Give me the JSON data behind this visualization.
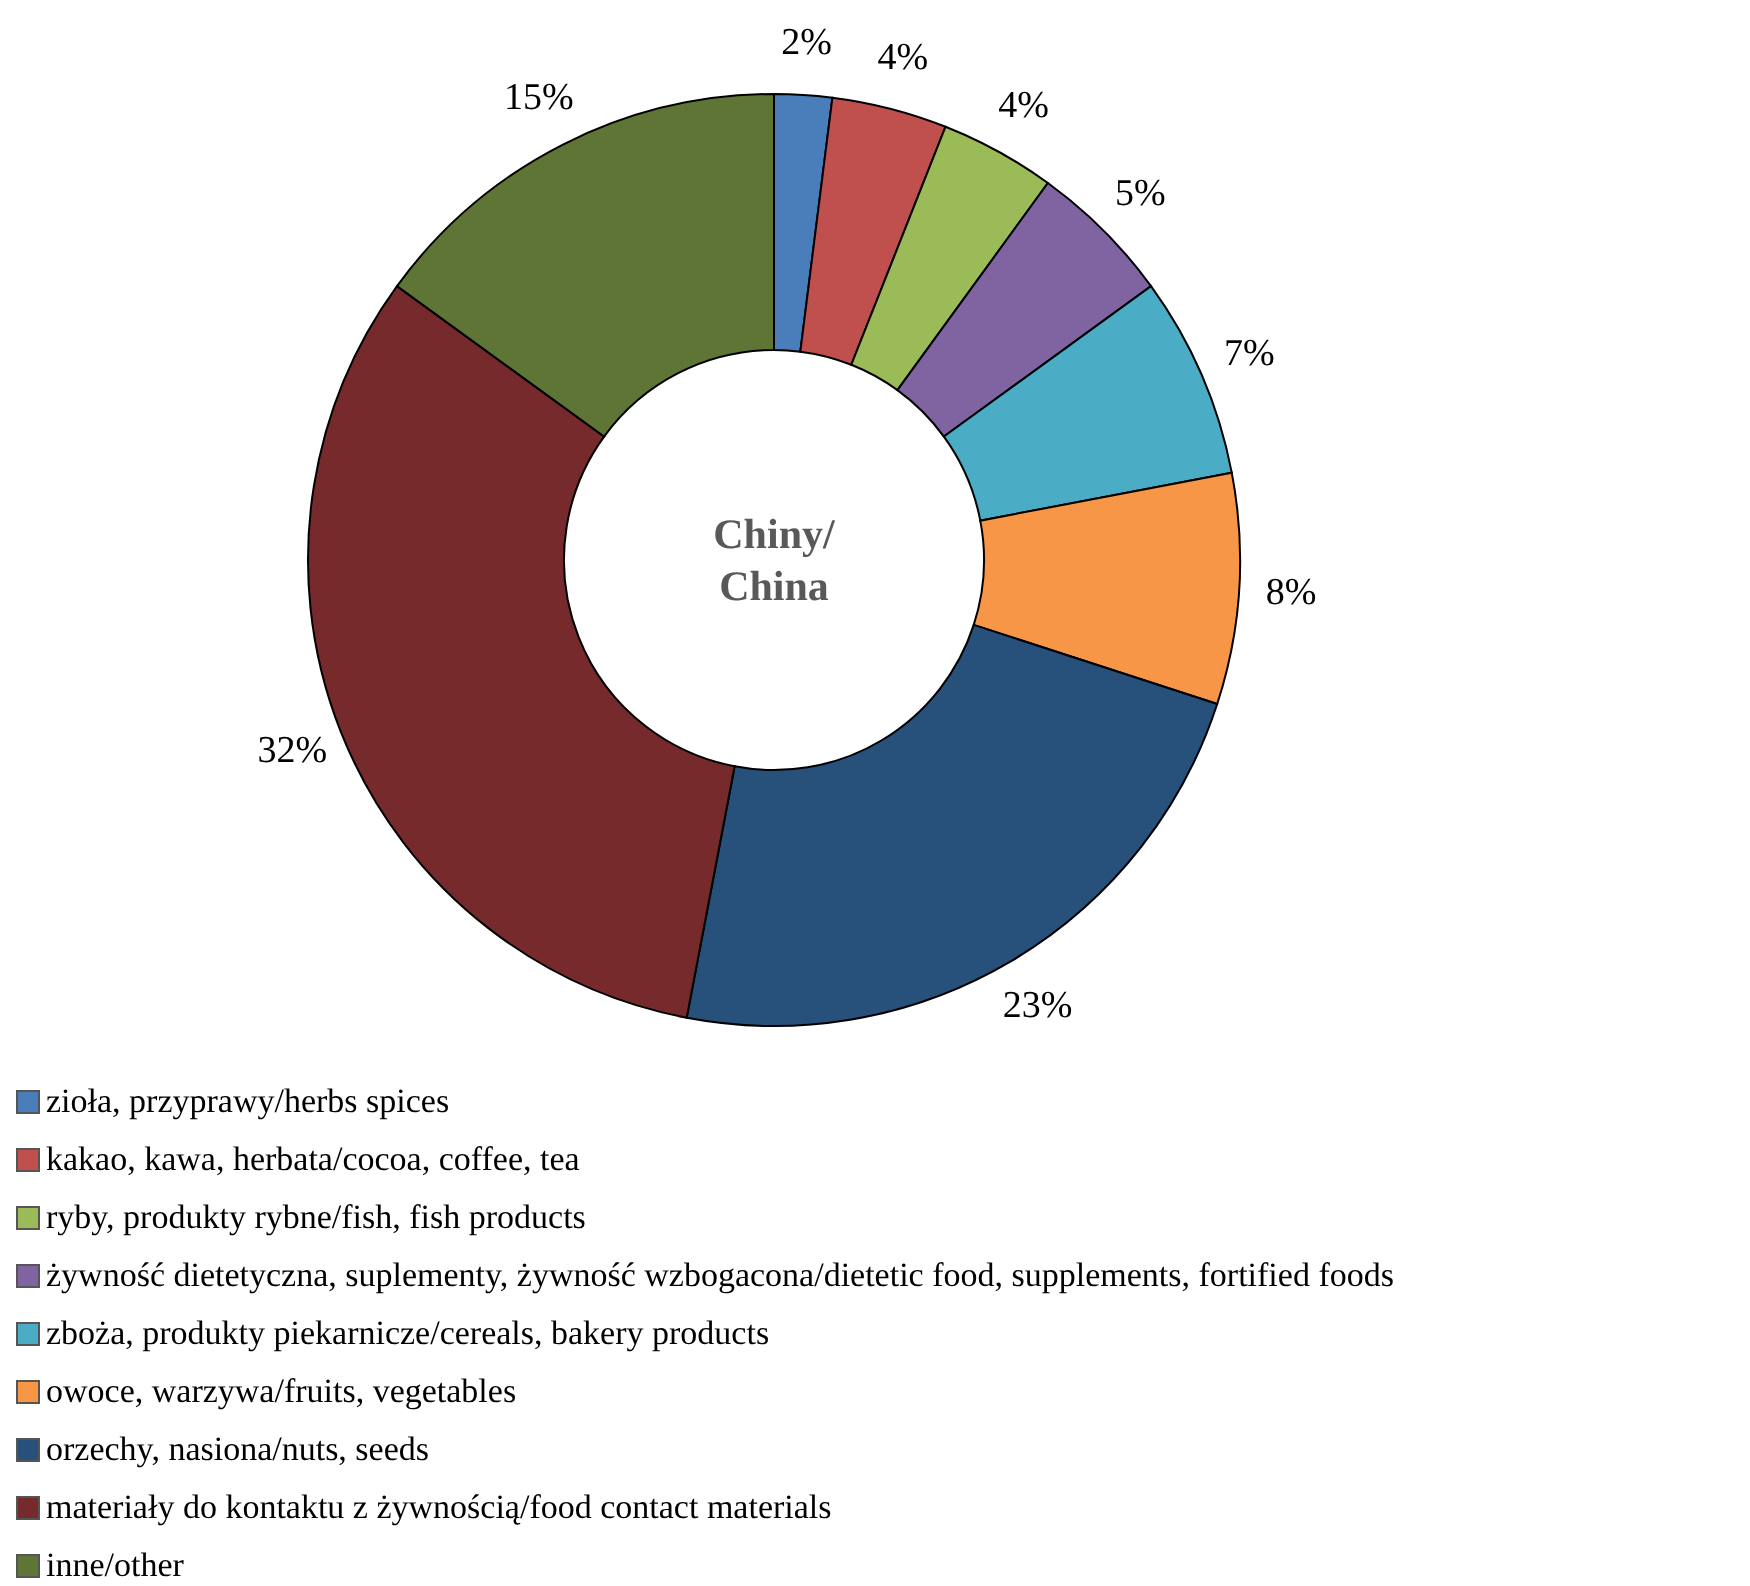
{
  "chart_data": {
    "type": "donut",
    "title": "Chiny/\nChina",
    "categories": [
      "zioła, przyprawy/herbs spices",
      "kakao, kawa, herbata/cocoa, coffee, tea",
      "ryby, produkty rybne/fish, fish products",
      "żywność dietetyczna, suplementy, żywność wzbogacona/dietetic food, supplements, fortified foods",
      "zboża, produkty piekarnicze/cereals, bakery products",
      "owoce, warzywa/fruits, vegetables",
      "orzechy, nasiona/nuts, seeds",
      "materiały do kontaktu z żywnością/food contact materials",
      "inne/other"
    ],
    "values": [
      2,
      4,
      4,
      5,
      7,
      8,
      23,
      32,
      15
    ],
    "value_labels": [
      "2%",
      "4%",
      "4%",
      "5%",
      "7%",
      "8%",
      "23%",
      "32%",
      "15%"
    ],
    "colors": [
      "#4a7ebb",
      "#c0504d",
      "#9bbb59",
      "#8064a2",
      "#4bacc6",
      "#f79646",
      "#27507a",
      "#762a2c",
      "#5e7535"
    ],
    "legend": "bottom left"
  }
}
